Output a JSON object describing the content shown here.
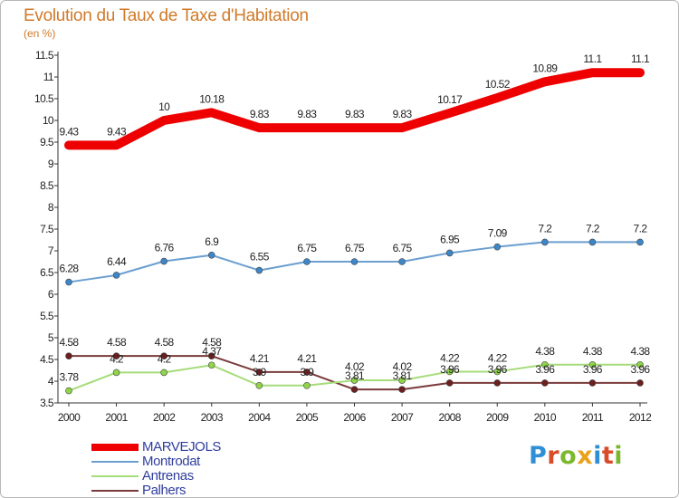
{
  "title": "Evolution du Taux de Taxe d'Habitation",
  "unit": "(en %)",
  "logo": {
    "text": "Proxiti",
    "letter_colors": [
      "#2f8fd6",
      "#d94c2a",
      "#7cb82f",
      "#e8a21c",
      "#2f8fd6",
      "#d94c2a",
      "#7cb82f"
    ]
  },
  "chart_data": {
    "type": "line",
    "x": [
      "2000",
      "2001",
      "2002",
      "2003",
      "2004",
      "2005",
      "2006",
      "2007",
      "2008",
      "2009",
      "2010",
      "2011",
      "2012"
    ],
    "ylim": [
      3.5,
      11.5
    ],
    "yticks": [
      "3.5",
      "4",
      "4.5",
      "5",
      "5.5",
      "6",
      "6.5",
      "7",
      "7.5",
      "8",
      "8.5",
      "9",
      "9.5",
      "10",
      "10.5",
      "11",
      "11.5"
    ],
    "grid": false,
    "legend_position": "bottom-left",
    "series": [
      {
        "name": "MARVEJOLS",
        "color": "#ee0000",
        "values": [
          9.43,
          9.43,
          10,
          10.18,
          9.83,
          9.83,
          9.83,
          9.83,
          10.17,
          10.52,
          10.89,
          11.1,
          11.1
        ],
        "labels": [
          "9.43",
          "9.43",
          "10",
          "10.18",
          "9.83",
          "9.83",
          "9.83",
          "9.83",
          "10.17",
          "10.52",
          "10.89",
          "11.1",
          "11.1"
        ]
      },
      {
        "name": "Montrodat",
        "color": "#6b9fd0",
        "marker_color": "#3d86c8",
        "values": [
          6.28,
          6.44,
          6.76,
          6.9,
          6.55,
          6.75,
          6.75,
          6.75,
          6.95,
          7.09,
          7.2,
          7.2,
          7.2
        ],
        "labels": [
          "6.28",
          "6.44",
          "6.76",
          "6.9",
          "6.55",
          "6.75",
          "6.75",
          "6.75",
          "6.95",
          "7.09",
          "7.2",
          "7.2",
          "7.2"
        ]
      },
      {
        "name": "Antrenas",
        "color": "#a6dc7a",
        "marker_color": "#8fd449",
        "values": [
          3.78,
          4.2,
          4.2,
          4.37,
          3.9,
          3.9,
          4.02,
          4.02,
          4.22,
          4.22,
          4.38,
          4.38,
          4.38
        ],
        "labels": [
          "3.78",
          "4.2",
          "4.2",
          "4.37",
          "3.9",
          "3.9",
          "4.02",
          "4.02",
          "4.22",
          "4.22",
          "4.38",
          "4.38",
          "4.38"
        ]
      },
      {
        "name": "Palhers",
        "color": "#7a3a3a",
        "marker_color": "#6b1f1f",
        "values": [
          4.58,
          4.58,
          4.58,
          4.58,
          4.21,
          4.21,
          3.81,
          3.81,
          3.96,
          3.96,
          3.96,
          3.96,
          3.96
        ],
        "labels": [
          "4.58",
          "4.58",
          "4.58",
          "4.58",
          "4.21",
          "4.21",
          "3.81",
          "3.81",
          "3.96",
          "3.96",
          "3.96",
          "3.96",
          "3.96"
        ]
      }
    ]
  }
}
